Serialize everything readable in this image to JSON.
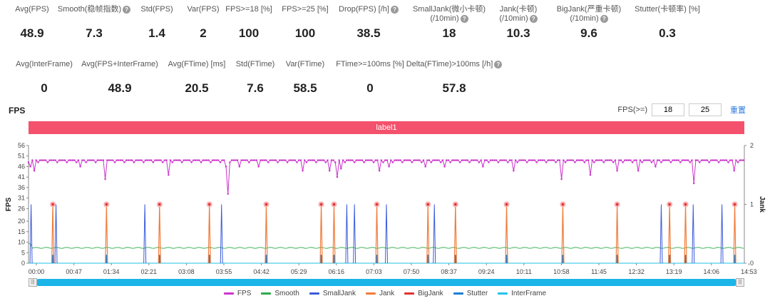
{
  "stats_row1": [
    {
      "label": "Avg(FPS)",
      "value": "48.9",
      "help": false
    },
    {
      "label": "Smooth(稳帧指数)",
      "value": "7.3",
      "help": true
    },
    {
      "label": "Std(FPS)",
      "value": "1.4",
      "help": false
    },
    {
      "label": "Var(FPS)",
      "value": "2",
      "help": false
    },
    {
      "label": "FPS>=18 [%]",
      "value": "100",
      "help": false
    },
    {
      "label": "FPS>=25 [%]",
      "value": "100",
      "help": false
    },
    {
      "label": "Drop(FPS) [/h]",
      "value": "38.5",
      "help": true
    },
    {
      "label": "SmallJank(微小卡顿)",
      "label2": "(/10min)",
      "value": "18",
      "help": true
    },
    {
      "label": "Jank(卡顿)",
      "label2": "(/10min)",
      "value": "10.3",
      "help": true
    },
    {
      "label": "BigJank(严重卡顿)",
      "label2": "(/10min)",
      "value": "9.6",
      "help": true
    },
    {
      "label": "Stutter(卡顿率) [%]",
      "value": "0.3",
      "help": false
    }
  ],
  "stats_row2": [
    {
      "label": "Avg(InterFrame)",
      "value": "0",
      "help": false
    },
    {
      "label": "Avg(FPS+InterFrame)",
      "value": "48.9",
      "help": false
    },
    {
      "label": "Avg(FTime) [ms]",
      "value": "20.5",
      "help": false
    },
    {
      "label": "Std(FTime)",
      "value": "7.6",
      "help": false
    },
    {
      "label": "Var(FTime)",
      "value": "58.5",
      "help": false
    },
    {
      "label": "FTime>=100ms [%]",
      "value": "0",
      "help": false
    },
    {
      "label": "Delta(FTime)>100ms [/h]",
      "value": "57.8",
      "help": true
    }
  ],
  "fps_section": {
    "title": "FPS",
    "threshold_label": "FPS(>=)",
    "threshold_1": "18",
    "threshold_2": "25",
    "reset_label": "重置",
    "label_bar": "label1"
  },
  "legend": [
    {
      "name": "FPS",
      "color": "#cc33cc"
    },
    {
      "name": "Smooth",
      "color": "#2eaa4a"
    },
    {
      "name": "SmallJank",
      "color": "#3b5bdb"
    },
    {
      "name": "Jank",
      "color": "#f07c3a"
    },
    {
      "name": "BigJank",
      "color": "#e03131"
    },
    {
      "name": "Stutter",
      "color": "#1c7ed6"
    },
    {
      "name": "InterFrame",
      "color": "#22c3e6"
    }
  ],
  "chart_data": {
    "type": "line",
    "ylabel": "FPS",
    "y2label": "Jank",
    "ylim": [
      0,
      56
    ],
    "y_ticks": [
      0,
      5,
      10,
      15,
      20,
      26,
      31,
      36,
      41,
      46,
      51,
      56
    ],
    "y2lim": [
      0,
      2
    ],
    "y2_ticks": [
      0,
      1,
      2
    ],
    "x_ticks": [
      "00:00",
      "00:47",
      "01:34",
      "02:21",
      "03:08",
      "03:55",
      "04:42",
      "05:29",
      "06:16",
      "07:03",
      "07:50",
      "08:37",
      "09:24",
      "10:11",
      "10:58",
      "11:45",
      "12:32",
      "13:19",
      "14:06",
      "14:53"
    ],
    "x_range_seconds": [
      0,
      941
    ],
    "fps_baseline": 49,
    "fps_dips": [
      {
        "t": 4,
        "v": 46
      },
      {
        "t": 9,
        "v": 44
      },
      {
        "t": 80,
        "v": 46
      },
      {
        "t": 120,
        "v": 40
      },
      {
        "t": 220,
        "v": 42
      },
      {
        "t": 310,
        "v": 46
      },
      {
        "t": 312,
        "v": 33
      },
      {
        "t": 330,
        "v": 46
      },
      {
        "t": 360,
        "v": 46
      },
      {
        "t": 430,
        "v": 44
      },
      {
        "t": 470,
        "v": 44
      },
      {
        "t": 482,
        "v": 41
      },
      {
        "t": 490,
        "v": 45
      },
      {
        "t": 550,
        "v": 44
      },
      {
        "t": 565,
        "v": 46
      },
      {
        "t": 620,
        "v": 46
      },
      {
        "t": 650,
        "v": 46
      },
      {
        "t": 710,
        "v": 46
      },
      {
        "t": 760,
        "v": 44
      },
      {
        "t": 835,
        "v": 40
      },
      {
        "t": 880,
        "v": 42
      },
      {
        "t": 920,
        "v": 44
      },
      {
        "t": 955,
        "v": 44
      },
      {
        "t": 980,
        "v": 46
      },
      {
        "t": 1040,
        "v": 38
      },
      {
        "t": 1105,
        "v": 44
      }
    ],
    "smooth_level": 7.3,
    "smalljank_times": [
      4,
      43,
      182,
      302,
      498,
      510,
      560,
      635,
      990,
      1040,
      1085
    ],
    "jank_times": [
      38,
      122,
      205,
      283,
      372,
      458,
      478,
      545,
      625,
      668,
      748,
      836,
      921,
      1003,
      1028,
      1105
    ],
    "bigjank_times": [
      38,
      122,
      205,
      283,
      372,
      458,
      478,
      545,
      625,
      668,
      748,
      836,
      921,
      1003,
      1028,
      1105
    ],
    "stutter_times": [
      38,
      122,
      205,
      283,
      372,
      458,
      478,
      545,
      625,
      668,
      748,
      836,
      921,
      1003,
      1028,
      1105
    ],
    "interframe_level": 0
  }
}
